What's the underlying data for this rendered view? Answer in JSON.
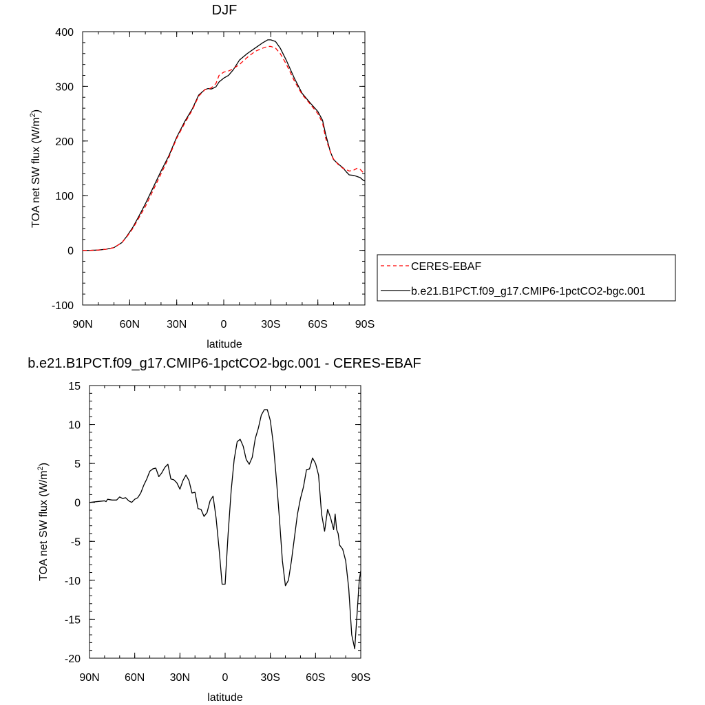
{
  "chart_data": [
    {
      "type": "line",
      "title": "DJF",
      "xlabel": "latitude",
      "ylabel": "TOA net SW flux (W/m",
      "ylabel_sup": "2",
      "ylabel_end": ")",
      "xlim": [
        -90,
        90
      ],
      "ylim": [
        -100,
        400
      ],
      "x_ticks": [
        -90,
        -60,
        -30,
        0,
        30,
        60,
        90
      ],
      "x_tick_labels": [
        "90N",
        "60N",
        "30N",
        "0",
        "30S",
        "60S",
        "90S"
      ],
      "y_ticks": [
        -100,
        0,
        100,
        200,
        300,
        400
      ],
      "y_tick_labels": [
        "-100",
        "0",
        "100",
        "200",
        "300",
        "400"
      ],
      "grid": false,
      "legend_position": "right",
      "series": [
        {
          "name": "CERES-EBAF",
          "color": "#ff0000",
          "style": "dashed",
          "x": [
            -90,
            -85,
            -80,
            -75,
            -70,
            -65,
            -62,
            -58,
            -54,
            -50,
            -45,
            -40,
            -35,
            -30,
            -25,
            -20,
            -16,
            -12,
            -10,
            -8,
            -5,
            -3,
            0,
            3,
            6,
            10,
            15,
            20,
            25,
            28,
            30,
            33,
            36,
            40,
            45,
            50,
            55,
            60,
            63,
            65,
            68,
            70,
            73,
            76,
            78,
            80,
            83,
            85,
            87,
            89,
            90
          ],
          "y": [
            0,
            0,
            0.5,
            2,
            5,
            14,
            24,
            40,
            60,
            80,
            110,
            140,
            170,
            205,
            232,
            257,
            282,
            294,
            295,
            297,
            305,
            320,
            326,
            328,
            332,
            340,
            353,
            364,
            370,
            373,
            373,
            370,
            360,
            340,
            310,
            285,
            268,
            250,
            233,
            205,
            180,
            167,
            157,
            150,
            148,
            145,
            147,
            150,
            148,
            142,
            140
          ]
        },
        {
          "name": "b.e21.B1PCT.f09_g17.CMIP6-1pctCO2-bgc.001",
          "color": "#000000",
          "style": "solid",
          "x": [
            -90,
            -85,
            -80,
            -75,
            -70,
            -65,
            -62,
            -58,
            -54,
            -50,
            -45,
            -40,
            -35,
            -30,
            -25,
            -20,
            -16,
            -12,
            -10,
            -8,
            -5,
            -3,
            0,
            3,
            6,
            10,
            15,
            20,
            25,
            28,
            30,
            33,
            36,
            40,
            45,
            50,
            55,
            60,
            63,
            65,
            68,
            70,
            73,
            76,
            78,
            80,
            83,
            85,
            87,
            89,
            90
          ],
          "y": [
            0,
            0,
            0.5,
            2,
            5,
            14,
            25,
            42,
            63,
            85,
            115,
            145,
            173,
            207,
            235,
            259,
            284,
            294,
            296,
            295,
            299,
            308,
            315,
            320,
            330,
            348,
            360,
            370,
            380,
            385,
            385,
            382,
            370,
            347,
            315,
            287,
            270,
            254,
            238,
            212,
            180,
            166,
            158,
            151,
            144,
            138,
            137,
            135,
            133,
            128,
            127
          ]
        }
      ]
    },
    {
      "type": "line",
      "title": "b.e21.B1PCT.f09_g17.CMIP6-1pctCO2-bgc.001 - CERES-EBAF",
      "xlabel": "latitude",
      "ylabel": "TOA net SW flux (W/m",
      "ylabel_sup": "2",
      "ylabel_end": ")",
      "xlim": [
        -90,
        90
      ],
      "ylim": [
        -20,
        15
      ],
      "x_ticks": [
        -90,
        -60,
        -30,
        0,
        30,
        60,
        90
      ],
      "x_tick_labels": [
        "90N",
        "60N",
        "30N",
        "0",
        "30S",
        "60S",
        "90S"
      ],
      "y_ticks": [
        -20,
        -15,
        -10,
        -5,
        0,
        5,
        10,
        15
      ],
      "y_tick_labels": [
        "-20",
        "-15",
        "-10",
        "-5",
        "0",
        "5",
        "10",
        "15"
      ],
      "grid": false,
      "series": [
        {
          "color": "#000000",
          "style": "solid",
          "x": [
            -90,
            -85,
            -80,
            -79,
            -78,
            -75,
            -72,
            -70,
            -68,
            -66,
            -64,
            -62,
            -60,
            -58,
            -56,
            -54,
            -52,
            -50,
            -48,
            -46,
            -44,
            -42,
            -40,
            -38,
            -36,
            -34,
            -32,
            -30,
            -28,
            -26,
            -24,
            -22,
            -20,
            -18,
            -16,
            -14,
            -12,
            -10,
            -8,
            -6,
            -4,
            -2,
            0,
            2,
            4,
            6,
            8,
            10,
            12,
            14,
            16,
            18,
            20,
            22,
            24,
            26,
            28,
            30,
            32,
            34,
            36,
            38,
            40,
            42,
            44,
            46,
            48,
            50,
            52,
            54,
            56,
            58,
            60,
            62,
            64,
            66,
            68,
            70,
            72,
            73,
            74,
            75,
            76,
            78,
            80,
            82,
            84,
            86,
            88,
            89,
            90
          ],
          "y": [
            0,
            0.1,
            0.2,
            0.1,
            0.4,
            0.3,
            0.3,
            0.7,
            0.5,
            0.6,
            0.2,
            0,
            0.4,
            0.6,
            1.2,
            2.2,
            3.0,
            4.0,
            4.3,
            4.4,
            3.3,
            3.8,
            4.5,
            4.9,
            3.0,
            2.9,
            2.5,
            1.7,
            2.8,
            3.5,
            2.8,
            1.2,
            1.3,
            -0.8,
            -0.9,
            -1.8,
            -1.3,
            0.2,
            0.8,
            -2.0,
            -6.0,
            -10.5,
            -10.5,
            -4.0,
            1.5,
            5.5,
            7.8,
            8.1,
            7.2,
            5.5,
            4.9,
            5.8,
            8.2,
            9.5,
            11.2,
            11.9,
            11.9,
            10.5,
            7.5,
            3.0,
            -2.0,
            -7.5,
            -10.7,
            -10.0,
            -7.5,
            -4.5,
            -1.5,
            0.5,
            2.0,
            4.2,
            4.3,
            5.7,
            5.0,
            3.5,
            -1.5,
            -3.7,
            -0.9,
            -2.0,
            -3.5,
            -1.5,
            -3.5,
            -4.0,
            -5.5,
            -6.0,
            -7.5,
            -11.0,
            -17.0,
            -18.8,
            -13.0,
            -10.0,
            -8.8
          ]
        }
      ]
    }
  ]
}
